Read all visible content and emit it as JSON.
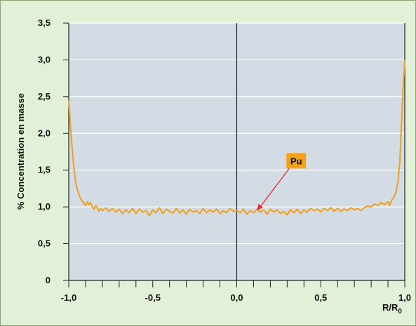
{
  "chart_data": {
    "type": "line",
    "title": "",
    "ylabel": "% Concentration en masse",
    "xlabel_main": "R/R",
    "xlabel_sub": "0",
    "xlim": [
      -1.0,
      1.0
    ],
    "ylim": [
      0,
      3.5
    ],
    "x_ticks": [
      -1.0,
      -0.5,
      0.0,
      0.5,
      1.0
    ],
    "x_tick_labels": [
      "-1,0",
      "-0,5",
      "0,0",
      "0,5",
      "1,0"
    ],
    "y_ticks": [
      0,
      0.5,
      1.0,
      1.5,
      2.0,
      2.5,
      3.0,
      3.5
    ],
    "y_tick_labels": [
      "0",
      "0,5",
      "1,0",
      "1,5",
      "2,0",
      "2,5",
      "3,0",
      "3,5"
    ],
    "grid": "horizontal",
    "vertical_line_at": 0.0,
    "annotation": {
      "text": "Pu",
      "target_x": 0.12,
      "target_y": 0.95
    },
    "colors": {
      "line": "#f0a020",
      "plot_bg": "#d3dbe5",
      "outer_bg": "#e3f0d8",
      "annotation_bg": "#f5a21b",
      "arrow": "#e0302a"
    },
    "series": [
      {
        "x": [
          -1.0,
          -0.99,
          -0.98,
          -0.97,
          -0.96,
          -0.95,
          -0.94,
          -0.93,
          -0.92,
          -0.91,
          -0.9,
          -0.89,
          -0.88,
          -0.87,
          -0.86,
          -0.85,
          -0.84,
          -0.83,
          -0.82,
          -0.81,
          -0.8,
          -0.78,
          -0.76,
          -0.74,
          -0.72,
          -0.7,
          -0.68,
          -0.66,
          -0.64,
          -0.62,
          -0.6,
          -0.58,
          -0.56,
          -0.54,
          -0.52,
          -0.5,
          -0.48,
          -0.46,
          -0.44,
          -0.42,
          -0.4,
          -0.38,
          -0.36,
          -0.34,
          -0.32,
          -0.3,
          -0.28,
          -0.26,
          -0.24,
          -0.22,
          -0.2,
          -0.18,
          -0.16,
          -0.14,
          -0.12,
          -0.1,
          -0.08,
          -0.06,
          -0.04,
          -0.02,
          0.0,
          0.02,
          0.04,
          0.06,
          0.08,
          0.1,
          0.12,
          0.14,
          0.16,
          0.18,
          0.2,
          0.22,
          0.24,
          0.26,
          0.28,
          0.3,
          0.32,
          0.34,
          0.36,
          0.38,
          0.4,
          0.42,
          0.44,
          0.46,
          0.48,
          0.5,
          0.52,
          0.54,
          0.56,
          0.58,
          0.6,
          0.62,
          0.64,
          0.66,
          0.68,
          0.7,
          0.72,
          0.74,
          0.76,
          0.78,
          0.8,
          0.82,
          0.84,
          0.86,
          0.88,
          0.9,
          0.91,
          0.92,
          0.93,
          0.94,
          0.95,
          0.96,
          0.97,
          0.98,
          0.99,
          1.0
        ],
        "y": [
          2.45,
          2.1,
          1.8,
          1.55,
          1.35,
          1.25,
          1.17,
          1.12,
          1.08,
          1.05,
          1.02,
          1.07,
          1.03,
          1.06,
          1.0,
          0.97,
          1.02,
          0.99,
          0.94,
          0.98,
          0.95,
          0.99,
          0.94,
          0.98,
          0.93,
          0.97,
          0.91,
          0.96,
          0.92,
          0.98,
          0.91,
          0.97,
          0.93,
          0.95,
          0.88,
          0.96,
          0.92,
          0.99,
          0.91,
          0.97,
          0.94,
          0.91,
          0.98,
          0.92,
          0.96,
          0.9,
          0.97,
          0.93,
          0.95,
          0.91,
          0.98,
          0.92,
          0.96,
          0.93,
          0.97,
          0.91,
          0.95,
          0.92,
          0.98,
          0.94,
          0.95,
          0.92,
          0.97,
          0.9,
          0.95,
          0.92,
          0.97,
          0.93,
          0.96,
          0.9,
          0.97,
          0.93,
          0.96,
          0.91,
          0.94,
          0.89,
          0.96,
          0.92,
          0.97,
          0.91,
          0.96,
          0.93,
          0.98,
          0.95,
          0.97,
          0.93,
          0.98,
          0.95,
          0.99,
          0.94,
          0.98,
          0.94,
          0.97,
          0.95,
          0.99,
          0.96,
          0.98,
          0.95,
          0.99,
          1.01,
          1.0,
          1.04,
          1.02,
          1.06,
          1.03,
          1.07,
          1.02,
          1.08,
          1.12,
          1.15,
          1.22,
          1.35,
          1.6,
          2.1,
          2.6,
          3.0
        ]
      }
    ]
  }
}
